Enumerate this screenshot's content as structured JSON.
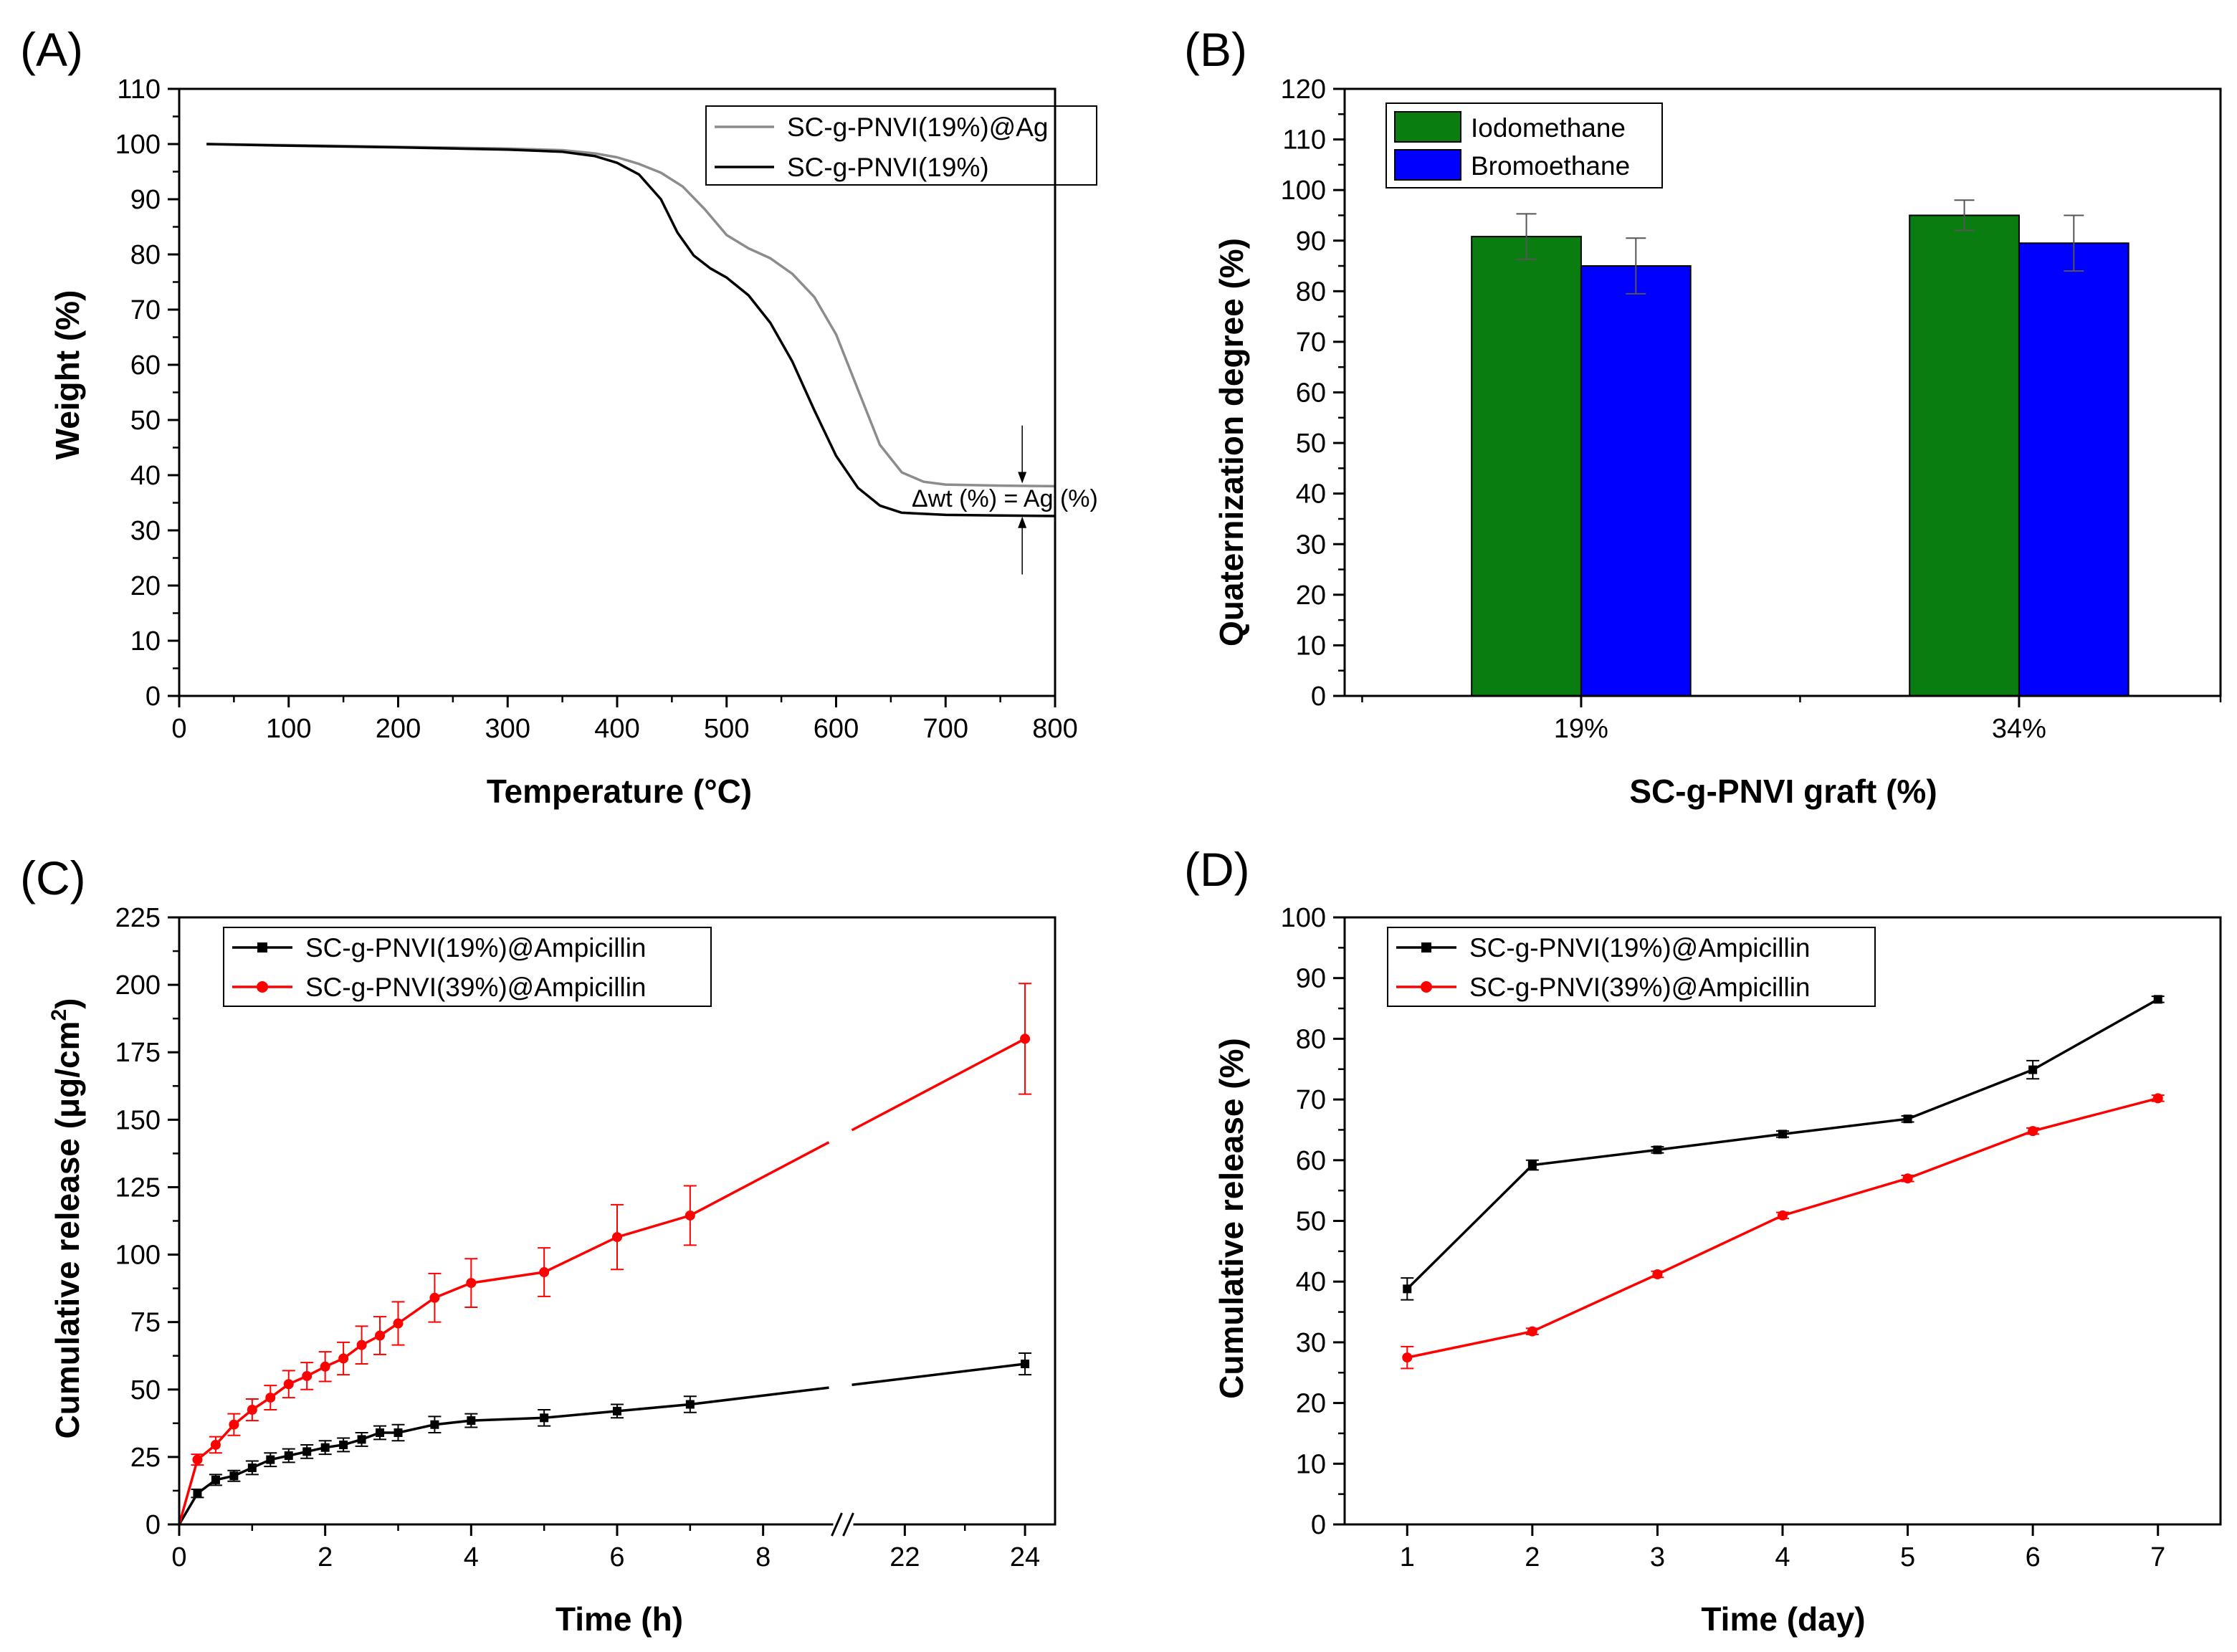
{
  "chart_data": [
    {
      "id": "A",
      "panel_label": "(A)",
      "type": "line",
      "xlabel": "Temperature (°C)",
      "ylabel": "Weight (%)",
      "xlim": [
        0,
        800
      ],
      "ylim": [
        0,
        110
      ],
      "xticks": [
        0,
        100,
        200,
        300,
        400,
        500,
        600,
        700,
        800
      ],
      "yticks": [
        0,
        10,
        20,
        30,
        40,
        50,
        60,
        70,
        80,
        90,
        100,
        110
      ],
      "legend_position": "top-right",
      "series": [
        {
          "name": "SC-g-PNVI(19%)@Ag",
          "color": "#8c8c8c",
          "x": [
            25,
            100,
            200,
            300,
            350,
            380,
            400,
            420,
            440,
            460,
            480,
            500,
            520,
            540,
            560,
            580,
            600,
            620,
            640,
            660,
            680,
            700,
            750,
            800
          ],
          "y": [
            100,
            99.8,
            99.5,
            99.2,
            98.9,
            98.3,
            97.6,
            96.4,
            94.8,
            92.3,
            88.2,
            83.5,
            81.1,
            79.3,
            76.5,
            72.3,
            65.5,
            55.5,
            45.5,
            40.5,
            38.8,
            38.3,
            38.1,
            38
          ]
        },
        {
          "name": "SC-g-PNVI(19%)",
          "color": "#000000",
          "x": [
            25,
            100,
            200,
            300,
            350,
            380,
            400,
            420,
            440,
            455,
            470,
            485,
            500,
            520,
            540,
            560,
            580,
            600,
            620,
            640,
            660,
            700,
            750,
            800
          ],
          "y": [
            100,
            99.7,
            99.4,
            99,
            98.6,
            97.8,
            96.6,
            94.5,
            90,
            84,
            79.8,
            77.5,
            75.8,
            72.6,
            67.6,
            60.6,
            51.8,
            43.5,
            37.7,
            34.5,
            33.2,
            32.8,
            32.7,
            32.6
          ]
        }
      ],
      "annotation": {
        "text": "Δwt (%) = Ag (%)",
        "x": 770,
        "upper_arrow_from": 49,
        "upper_arrow_to": 38.5,
        "lower_arrow_from": 22,
        "lower_arrow_to": 32.5
      }
    },
    {
      "id": "B",
      "panel_label": "(B)",
      "type": "bar",
      "xlabel": "SC-g-PNVI graft (%)",
      "ylabel": "Quaternization degree (%)",
      "categories": [
        "19%",
        "34%"
      ],
      "ylim": [
        0,
        120
      ],
      "yticks": [
        0,
        10,
        20,
        30,
        40,
        50,
        60,
        70,
        80,
        90,
        100,
        110,
        120
      ],
      "legend_position": "top-left",
      "series": [
        {
          "name": "Iodomethane",
          "color": "#0a7d10",
          "values": [
            90.8,
            95
          ],
          "errors": [
            4.5,
            3
          ]
        },
        {
          "name": "Bromoethane",
          "color": "#0000ff",
          "values": [
            85,
            89.5
          ],
          "errors": [
            5.5,
            5.5
          ]
        }
      ]
    },
    {
      "id": "C",
      "panel_label": "(C)",
      "type": "line",
      "xlabel": "Time (h)",
      "ylabel_main": "Cumulative release (μg/cm",
      "ylabel_sup": "2",
      "ylabel_end": ")",
      "ylim": [
        0,
        225
      ],
      "yticks": [
        0,
        25,
        50,
        75,
        100,
        125,
        150,
        175,
        200,
        225
      ],
      "xticks": [
        0,
        2,
        4,
        6,
        8,
        22,
        24
      ],
      "xtick_labels": [
        "0",
        "2",
        "4",
        "6",
        "8",
        "22",
        "24"
      ],
      "axis_break": {
        "left_range": [
          0,
          9
        ],
        "right_range": [
          21,
          24.5
        ]
      },
      "legend_position": "top-left",
      "series": [
        {
          "name": "SC-g-PNVI(19%)@Ampicillin",
          "color": "#000000",
          "marker": "square",
          "x": [
            0,
            0.25,
            0.5,
            0.75,
            1,
            1.25,
            1.5,
            1.75,
            2,
            2.25,
            2.5,
            2.75,
            3,
            3.5,
            4,
            5,
            6,
            7,
            24
          ],
          "y": [
            0,
            11.5,
            16.5,
            18,
            21,
            24,
            25.5,
            27,
            28.5,
            29.5,
            31.5,
            34,
            34,
            37,
            38.5,
            39.5,
            42,
            44.5,
            59.5
          ],
          "errors": [
            0,
            1.5,
            2,
            2,
            2.5,
            2.5,
            2.5,
            2.5,
            2.5,
            2.5,
            2.5,
            2.5,
            3,
            3,
            2.5,
            3,
            2.5,
            3,
            4
          ]
        },
        {
          "name": "SC-g-PNVI(39%)@Ampicillin",
          "color": "#ff0000",
          "marker": "circle",
          "x": [
            0,
            0.25,
            0.5,
            0.75,
            1,
            1.25,
            1.5,
            1.75,
            2,
            2.25,
            2.5,
            2.75,
            3,
            3.5,
            4,
            5,
            6,
            7,
            24
          ],
          "y": [
            0,
            24,
            29.5,
            37,
            42.5,
            47,
            52,
            55,
            58.5,
            61.5,
            66.5,
            70,
            74.5,
            84,
            89.5,
            93.5,
            106.5,
            114.5,
            180
          ],
          "errors": [
            0,
            2,
            3,
            4,
            4,
            4.5,
            5,
            5,
            5.5,
            6,
            7,
            7,
            8,
            9,
            9,
            9,
            12,
            11,
            20.5
          ]
        }
      ]
    },
    {
      "id": "D",
      "panel_label": "(D)",
      "type": "line",
      "xlabel": "Time (day)",
      "ylabel": "Cumulative release (%)",
      "xlim": [
        0.5,
        7.5
      ],
      "ylim": [
        0,
        100
      ],
      "xticks": [
        1,
        2,
        3,
        4,
        5,
        6,
        7
      ],
      "yticks": [
        0,
        10,
        20,
        30,
        40,
        50,
        60,
        70,
        80,
        90,
        100
      ],
      "legend_position": "top-left",
      "series": [
        {
          "name": "SC-g-PNVI(19%)@Ampicillin",
          "color": "#000000",
          "marker": "square",
          "x": [
            1,
            2,
            3,
            4,
            5,
            6,
            7
          ],
          "y": [
            38.8,
            59.2,
            61.7,
            64.3,
            66.8,
            74.9,
            86.5
          ],
          "errors": [
            1.8,
            0.8,
            0.5,
            0.5,
            0.5,
            1.5,
            0.5
          ]
        },
        {
          "name": "SC-g-PNVI(39%)@Ampicillin",
          "color": "#ff0000",
          "marker": "circle",
          "x": [
            1,
            2,
            3,
            4,
            5,
            6,
            7
          ],
          "y": [
            27.5,
            31.8,
            41.2,
            50.9,
            57,
            64.8,
            70.2
          ],
          "errors": [
            1.8,
            0.5,
            0.5,
            0.5,
            0.5,
            0.5,
            0.5
          ]
        }
      ]
    }
  ]
}
